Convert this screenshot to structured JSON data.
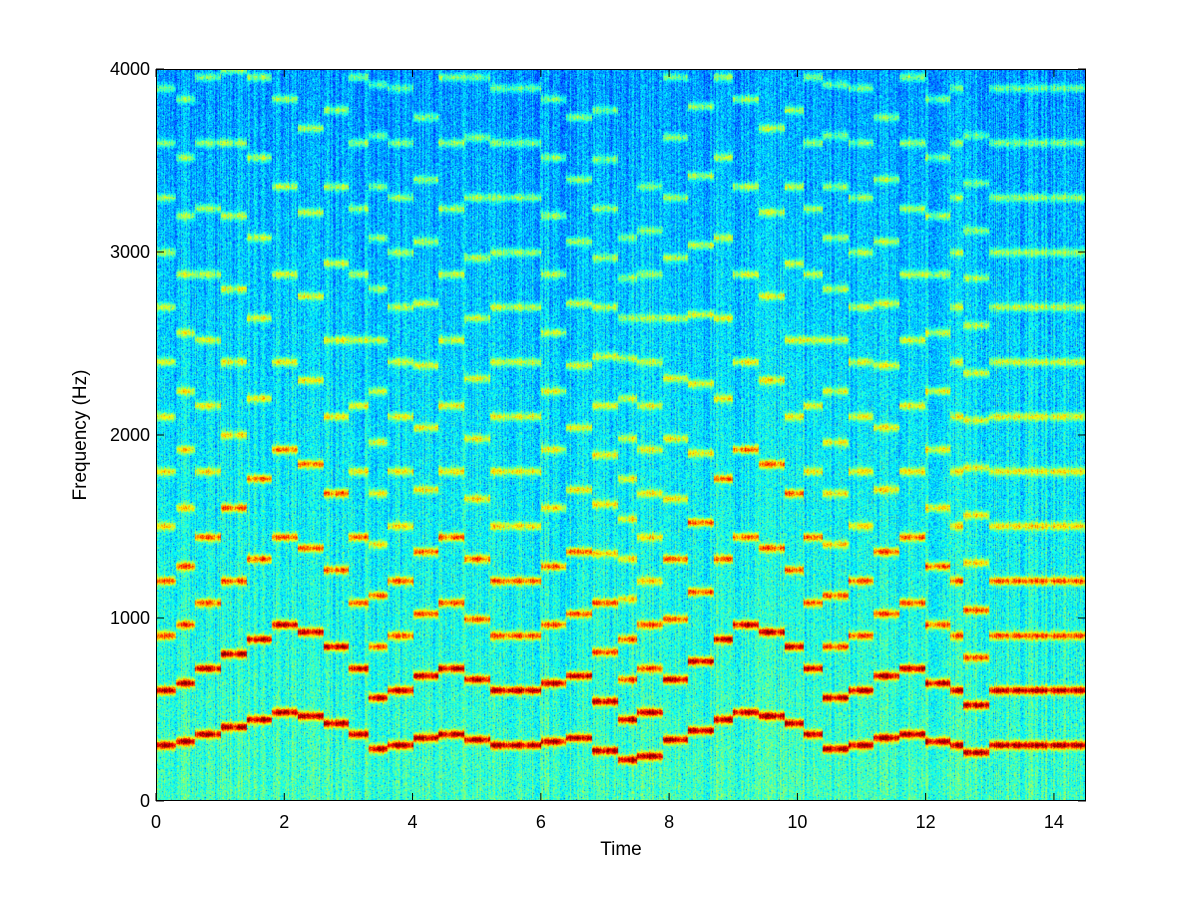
{
  "chart_data": {
    "type": "heatmap",
    "title": "",
    "xlabel": "Time",
    "ylabel": "Frequency (Hz)",
    "xlim": [
      0,
      14.5
    ],
    "ylim": [
      0,
      4000
    ],
    "x_ticks": [
      0,
      2,
      4,
      6,
      8,
      10,
      12,
      14
    ],
    "x_tick_labels": [
      "0",
      "2",
      "4",
      "6",
      "8",
      "10",
      "12",
      "14"
    ],
    "y_ticks": [
      0,
      1000,
      2000,
      3000,
      4000
    ],
    "y_tick_labels": [
      "0",
      "1000",
      "2000",
      "3000",
      "4000"
    ],
    "colormap": "jet",
    "grid": false,
    "fundamental_contour_hz": [
      [
        0.0,
        300
      ],
      [
        0.3,
        320
      ],
      [
        0.6,
        360
      ],
      [
        1.0,
        400
      ],
      [
        1.4,
        440
      ],
      [
        1.8,
        480
      ],
      [
        2.2,
        460
      ],
      [
        2.6,
        420
      ],
      [
        3.0,
        360
      ],
      [
        3.3,
        280
      ],
      [
        3.6,
        300
      ],
      [
        4.0,
        340
      ],
      [
        4.4,
        360
      ],
      [
        4.8,
        330
      ],
      [
        5.2,
        300
      ],
      [
        5.6,
        300
      ],
      [
        6.0,
        320
      ],
      [
        6.4,
        340
      ],
      [
        6.8,
        270
      ],
      [
        7.2,
        220
      ],
      [
        7.5,
        240
      ],
      [
        7.9,
        330
      ],
      [
        8.3,
        380
      ],
      [
        8.7,
        440
      ],
      [
        9.0,
        480
      ],
      [
        9.4,
        460
      ],
      [
        9.8,
        420
      ],
      [
        10.1,
        360
      ],
      [
        10.4,
        280
      ],
      [
        10.8,
        300
      ],
      [
        11.2,
        340
      ],
      [
        11.6,
        360
      ],
      [
        12.0,
        320
      ],
      [
        12.4,
        300
      ],
      [
        12.6,
        260
      ],
      [
        13.0,
        300
      ],
      [
        14.5,
        300
      ]
    ]
  }
}
